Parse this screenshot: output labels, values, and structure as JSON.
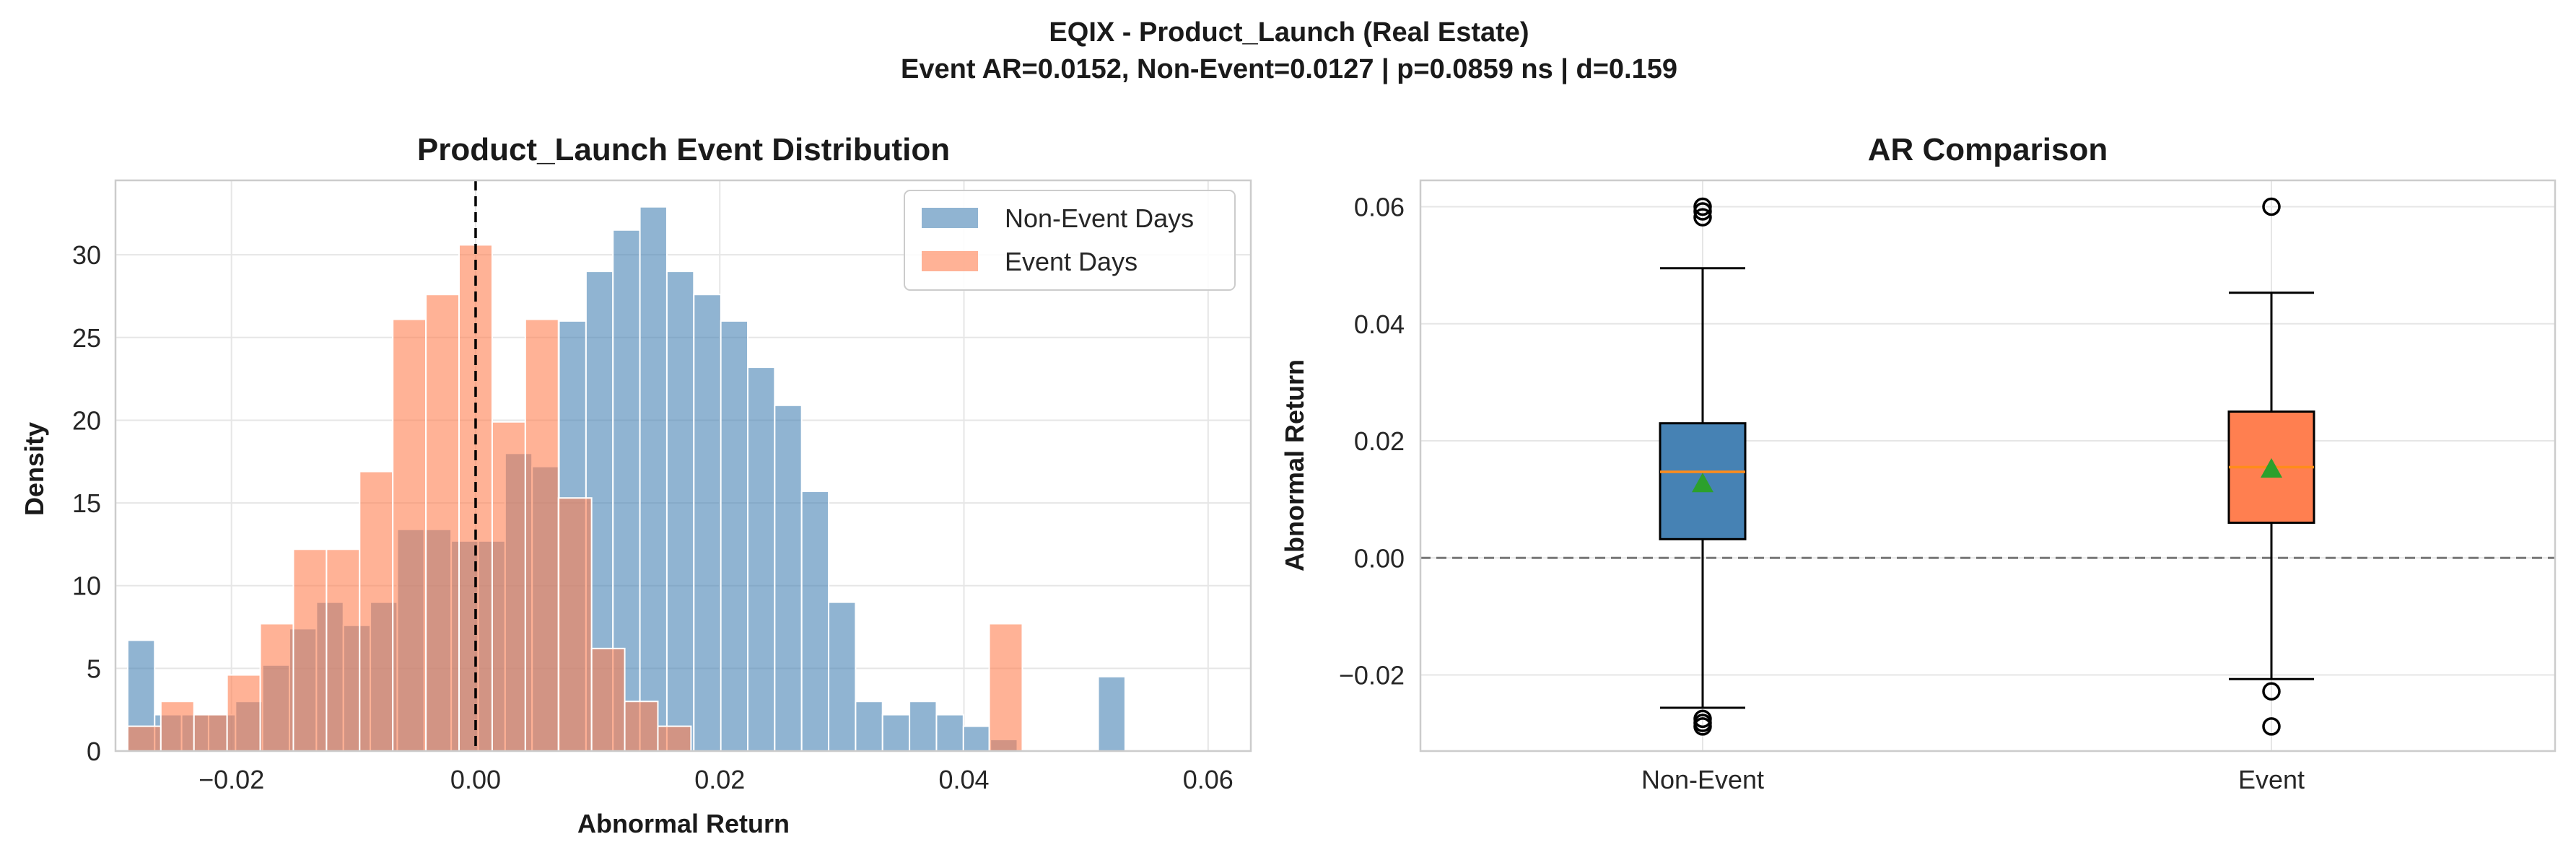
{
  "figure": {
    "suptitle_line1": "EQIX - Product_Launch (Real Estate)",
    "suptitle_line2": "Event AR=0.0152, Non-Event=0.0127 | p=0.0859 ns | d=0.159"
  },
  "colors": {
    "non_event": "#4682b4",
    "event": "#ff7f50",
    "overlap": "#d98a73",
    "median": "#ff8c1a",
    "mean_marker": "#2ca02c",
    "grid": "#e6e6e6",
    "spine": "#cccccc"
  },
  "chart_data": [
    {
      "type": "histogram",
      "title": "Product_Launch Event Distribution",
      "xlabel": "Abnormal Return",
      "ylabel": "Density",
      "xlim": [
        -0.0295,
        0.0635
      ],
      "ylim": [
        0,
        34.5
      ],
      "xticks": [
        -0.02,
        0.0,
        0.02,
        0.04,
        0.06
      ],
      "xtick_labels": [
        "−0.02",
        "0.00",
        "0.02",
        "0.04",
        "0.06"
      ],
      "yticks": [
        0,
        5,
        10,
        15,
        20,
        25,
        30
      ],
      "ytick_labels": [
        "0",
        "5",
        "10",
        "15",
        "20",
        "25",
        "30"
      ],
      "grid": true,
      "legend_position": "top-right",
      "vline": {
        "x": 0.0,
        "style": "dashed"
      },
      "series": [
        {
          "name": "Non-Event Days",
          "color": "#4682b4",
          "bin_start": -0.0285,
          "bin_width": 0.0022083,
          "values": [
            6.7,
            2.2,
            2.2,
            2.2,
            3.0,
            5.2,
            7.4,
            9.0,
            7.6,
            9.0,
            13.4,
            13.4,
            12.7,
            12.7,
            18.0,
            17.2,
            26.0,
            29.0,
            31.5,
            32.9,
            29.0,
            27.6,
            26.0,
            23.2,
            20.9,
            15.7,
            9.0,
            3.0,
            2.2,
            3.0,
            2.2,
            1.5,
            0.7,
            0,
            0,
            0,
            4.5
          ]
        },
        {
          "name": "Event Days",
          "color": "#ff7f50",
          "bin_start": -0.0285,
          "bin_width": 0.0027143,
          "values": [
            1.5,
            3.0,
            2.2,
            4.6,
            7.7,
            12.2,
            12.2,
            16.9,
            26.1,
            27.6,
            30.6,
            19.9,
            26.1,
            15.3,
            6.2,
            3.0,
            1.5,
            0,
            0,
            0,
            0,
            0,
            0,
            0,
            0,
            0,
            7.7
          ]
        }
      ]
    },
    {
      "type": "box",
      "title": "AR Comparison",
      "xlabel": "",
      "ylabel": "Abnormal Return",
      "categories": [
        "Non-Event",
        "Event"
      ],
      "ylim": [
        -0.033,
        0.0645
      ],
      "yticks": [
        -0.02,
        0.0,
        0.02,
        0.04,
        0.06
      ],
      "ytick_labels": [
        "−0.02",
        "0.00",
        "0.02",
        "0.04",
        "0.06"
      ],
      "grid": true,
      "hline": {
        "y": 0.0,
        "style": "dashed"
      },
      "boxes": [
        {
          "name": "Non-Event",
          "color": "#4682b4",
          "q1": 0.0032,
          "median": 0.0147,
          "q3": 0.023,
          "whisker_low": -0.0256,
          "whisker_high": 0.0495,
          "mean": 0.0127,
          "fliers": [
            0.06,
            0.0592,
            0.0582,
            -0.0275,
            -0.0282,
            -0.0288
          ]
        },
        {
          "name": "Event",
          "color": "#ff7f50",
          "q1": 0.006,
          "median": 0.0155,
          "q3": 0.025,
          "whisker_low": -0.0207,
          "whisker_high": 0.0453,
          "mean": 0.0152,
          "fliers": [
            0.06,
            -0.0228,
            -0.0288
          ]
        }
      ]
    }
  ]
}
